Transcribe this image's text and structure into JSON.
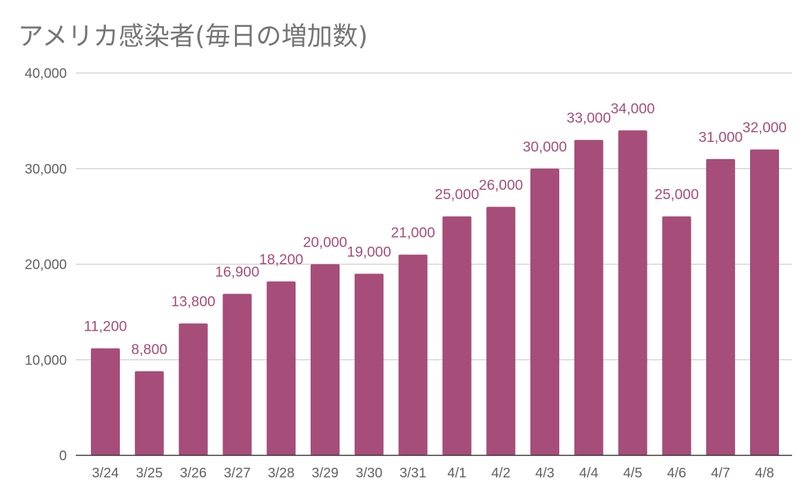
{
  "chart_data": {
    "type": "bar",
    "title": "アメリカ感染者(毎日の増加数)",
    "xlabel": "",
    "ylabel": "",
    "categories": [
      "3/24",
      "3/25",
      "3/26",
      "3/27",
      "3/28",
      "3/29",
      "3/30",
      "3/31",
      "4/1",
      "4/2",
      "4/3",
      "4/4",
      "4/5",
      "4/6",
      "4/7",
      "4/8"
    ],
    "values": [
      11200,
      8800,
      13800,
      16900,
      18200,
      20000,
      19000,
      21000,
      25000,
      26000,
      30000,
      33000,
      34000,
      25000,
      31000,
      32000
    ],
    "data_labels": [
      "11,200",
      "8,800",
      "13,800",
      "16,900",
      "18,200",
      "20,000",
      "19,000",
      "21,000",
      "25,000",
      "26,000",
      "30,000",
      "33,000",
      "34,000",
      "25,000",
      "31,000",
      "32,000"
    ],
    "ylim": [
      0,
      40000
    ],
    "yticks": [
      0,
      10000,
      20000,
      30000,
      40000
    ],
    "ytick_labels": [
      "0",
      "10,000",
      "20,000",
      "30,000",
      "40,000"
    ],
    "grid": true,
    "legend": "none",
    "bar_color": "#a64d79",
    "label_color": "#a64d79",
    "grid_color": "#cccccc",
    "axis_color": "#333333",
    "text_color": "#616161",
    "title_color": "#757575"
  }
}
